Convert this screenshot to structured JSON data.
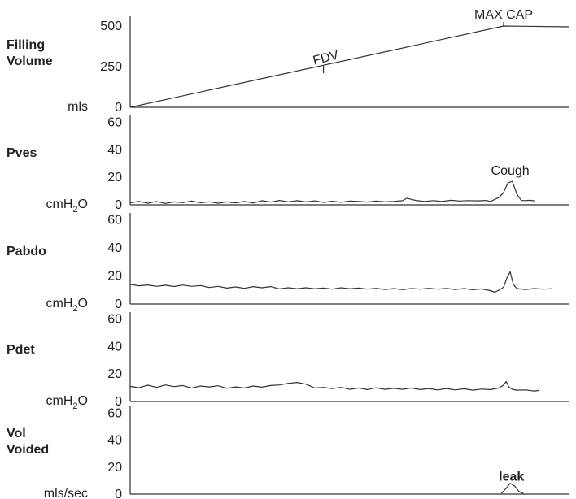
{
  "chart_data": {
    "type": "line",
    "x": {
      "range": [
        0,
        100
      ]
    },
    "colors": {
      "ink": "#333333",
      "background": "#ffffff"
    },
    "panels": [
      {
        "id": "filling-volume",
        "label_lines": [
          "Filling",
          "Volume"
        ],
        "unit": "mls",
        "ylim": [
          0,
          560
        ],
        "ticks": [
          0,
          250,
          500
        ],
        "series": [
          {
            "values": [
              [
                0,
                0
              ],
              [
                85,
                500
              ],
              [
                100,
                495
              ]
            ]
          }
        ],
        "annotations": [
          {
            "text": "FDV",
            "x": 44,
            "y": 240,
            "rotate": -14
          },
          {
            "text": "MAX CAP",
            "x": 85,
            "y": 500
          }
        ]
      },
      {
        "id": "pves",
        "label_lines": [
          "Pves"
        ],
        "unit": "cmH2O",
        "unit_main": "cmH",
        "unit_sub": "2",
        "unit_tail": "O",
        "ylim": [
          0,
          65
        ],
        "ticks": [
          0,
          20,
          40,
          60
        ],
        "series": [
          {
            "values": [
              [
                0,
                1.5
              ],
              [
                2,
                2.5
              ],
              [
                4,
                1.2
              ],
              [
                6,
                2.4
              ],
              [
                8,
                1
              ],
              [
                10,
                2.1
              ],
              [
                12,
                1.6
              ],
              [
                14,
                2.8
              ],
              [
                16,
                1.5
              ],
              [
                18,
                2.2
              ],
              [
                20,
                1.2
              ],
              [
                22,
                2.1
              ],
              [
                24,
                1.4
              ],
              [
                26,
                2.5
              ],
              [
                28,
                1.3
              ],
              [
                30,
                3
              ],
              [
                32,
                2
              ],
              [
                34,
                3.2
              ],
              [
                36,
                2.2
              ],
              [
                38,
                3
              ],
              [
                40,
                2.1
              ],
              [
                42,
                2.9
              ],
              [
                44,
                1.8
              ],
              [
                46,
                2.6
              ],
              [
                48,
                1.9
              ],
              [
                50,
                2.7
              ],
              [
                52,
                2.4
              ],
              [
                54,
                2
              ],
              [
                56,
                2.8
              ],
              [
                58,
                2.2
              ],
              [
                60,
                2.4
              ],
              [
                62,
                3
              ],
              [
                63,
                4.8
              ],
              [
                65,
                3.2
              ],
              [
                67,
                2.4
              ],
              [
                69,
                3.1
              ],
              [
                71,
                2.4
              ],
              [
                73,
                3.3
              ],
              [
                75,
                2.8
              ],
              [
                77,
                3.1
              ],
              [
                79,
                2.9
              ],
              [
                81,
                3.2
              ],
              [
                82,
                2.4
              ],
              [
                84,
                5.5
              ],
              [
                85,
                9
              ],
              [
                86,
                16
              ],
              [
                87,
                17
              ],
              [
                88,
                8
              ],
              [
                89,
                3.2
              ],
              [
                90,
                3.1
              ],
              [
                91,
                3.3
              ],
              [
                92,
                2.9
              ]
            ]
          }
        ],
        "annotations": [
          {
            "text": "Cough",
            "x": 86.5,
            "y": 22
          }
        ]
      },
      {
        "id": "pabdo",
        "label_lines": [
          "Pabdo"
        ],
        "unit": "cmH2O",
        "unit_main": "cmH",
        "unit_sub": "2",
        "unit_tail": "O",
        "ylim": [
          0,
          65
        ],
        "ticks": [
          0,
          20,
          40,
          60
        ],
        "series": [
          {
            "values": [
              [
                0,
                14
              ],
              [
                2,
                13
              ],
              [
                4,
                13.6
              ],
              [
                6,
                12.6
              ],
              [
                8,
                13.4
              ],
              [
                10,
                12.5
              ],
              [
                12,
                13.5
              ],
              [
                14,
                12.6
              ],
              [
                16,
                13.2
              ],
              [
                18,
                11.8
              ],
              [
                20,
                12.6
              ],
              [
                22,
                11.4
              ],
              [
                24,
                12.2
              ],
              [
                26,
                11.2
              ],
              [
                28,
                12.4
              ],
              [
                30,
                11.6
              ],
              [
                32,
                12.4
              ],
              [
                34,
                10.8
              ],
              [
                36,
                11.6
              ],
              [
                38,
                10.9
              ],
              [
                40,
                11.6
              ],
              [
                42,
                10.9
              ],
              [
                44,
                11.4
              ],
              [
                46,
                10.6
              ],
              [
                48,
                11.6
              ],
              [
                50,
                10.9
              ],
              [
                52,
                11.4
              ],
              [
                54,
                10.6
              ],
              [
                56,
                11.2
              ],
              [
                58,
                10.4
              ],
              [
                60,
                11
              ],
              [
                62,
                10.3
              ],
              [
                64,
                11
              ],
              [
                66,
                10.6
              ],
              [
                68,
                11.2
              ],
              [
                70,
                10.6
              ],
              [
                72,
                11.1
              ],
              [
                74,
                10.4
              ],
              [
                76,
                11
              ],
              [
                78,
                10.2
              ],
              [
                80,
                10.8
              ],
              [
                82,
                9.6
              ],
              [
                83,
                8.4
              ],
              [
                84,
                10
              ],
              [
                85,
                12
              ],
              [
                85.8,
                19
              ],
              [
                86.5,
                23
              ],
              [
                87.2,
                14
              ],
              [
                88,
                11
              ],
              [
                90,
                10.4
              ],
              [
                92,
                11
              ],
              [
                94,
                10.6
              ],
              [
                96,
                10.9
              ]
            ]
          }
        ],
        "annotations": []
      },
      {
        "id": "pdet",
        "label_lines": [
          "Pdet"
        ],
        "unit": "cmH2O",
        "unit_main": "cmH",
        "unit_sub": "2",
        "unit_tail": "O",
        "ylim": [
          0,
          65
        ],
        "ticks": [
          0,
          20,
          40,
          60
        ],
        "series": [
          {
            "values": [
              [
                0,
                11
              ],
              [
                2,
                10
              ],
              [
                4,
                11.8
              ],
              [
                6,
                10.2
              ],
              [
                8,
                12
              ],
              [
                10,
                10.8
              ],
              [
                12,
                11.6
              ],
              [
                14,
                9.8
              ],
              [
                16,
                11.2
              ],
              [
                18,
                10.6
              ],
              [
                20,
                11.4
              ],
              [
                22,
                9.6
              ],
              [
                24,
                10.6
              ],
              [
                26,
                9.8
              ],
              [
                28,
                11.2
              ],
              [
                30,
                10.4
              ],
              [
                32,
                11.6
              ],
              [
                34,
                12
              ],
              [
                36,
                13.2
              ],
              [
                38,
                13.8
              ],
              [
                40,
                12.6
              ],
              [
                42,
                9.8
              ],
              [
                44,
                10.2
              ],
              [
                46,
                9.4
              ],
              [
                48,
                10.2
              ],
              [
                50,
                8.8
              ],
              [
                52,
                9.8
              ],
              [
                54,
                8.6
              ],
              [
                56,
                10
              ],
              [
                58,
                8.8
              ],
              [
                60,
                9.6
              ],
              [
                62,
                8.8
              ],
              [
                64,
                9.8
              ],
              [
                66,
                8.6
              ],
              [
                68,
                9.4
              ],
              [
                70,
                8.4
              ],
              [
                72,
                9.4
              ],
              [
                74,
                8.4
              ],
              [
                76,
                9.2
              ],
              [
                78,
                8.2
              ],
              [
                80,
                9
              ],
              [
                82,
                8.6
              ],
              [
                84,
                9.8
              ],
              [
                85,
                12
              ],
              [
                85.6,
                14.5
              ],
              [
                86.2,
                10.5
              ],
              [
                87,
                8.8
              ],
              [
                88,
                8.2
              ],
              [
                90,
                8.4
              ],
              [
                92,
                7.6
              ],
              [
                93,
                8
              ]
            ]
          }
        ],
        "annotations": []
      },
      {
        "id": "vol-voided",
        "label_lines": [
          "Vol",
          "Voided"
        ],
        "unit": "mls/sec",
        "ylim": [
          0,
          65
        ],
        "ticks": [
          0,
          20,
          40,
          60
        ],
        "series": [
          {
            "values": [
              [
                84.5,
                0.5
              ],
              [
                85.5,
                4
              ],
              [
                86.5,
                8
              ],
              [
                87.5,
                6
              ],
              [
                88.5,
                2
              ],
              [
                89.5,
                0.5
              ]
            ]
          }
        ],
        "annotations": [
          {
            "text": "leak",
            "x": 86.8,
            "y": 10,
            "bold": true
          }
        ]
      }
    ]
  }
}
